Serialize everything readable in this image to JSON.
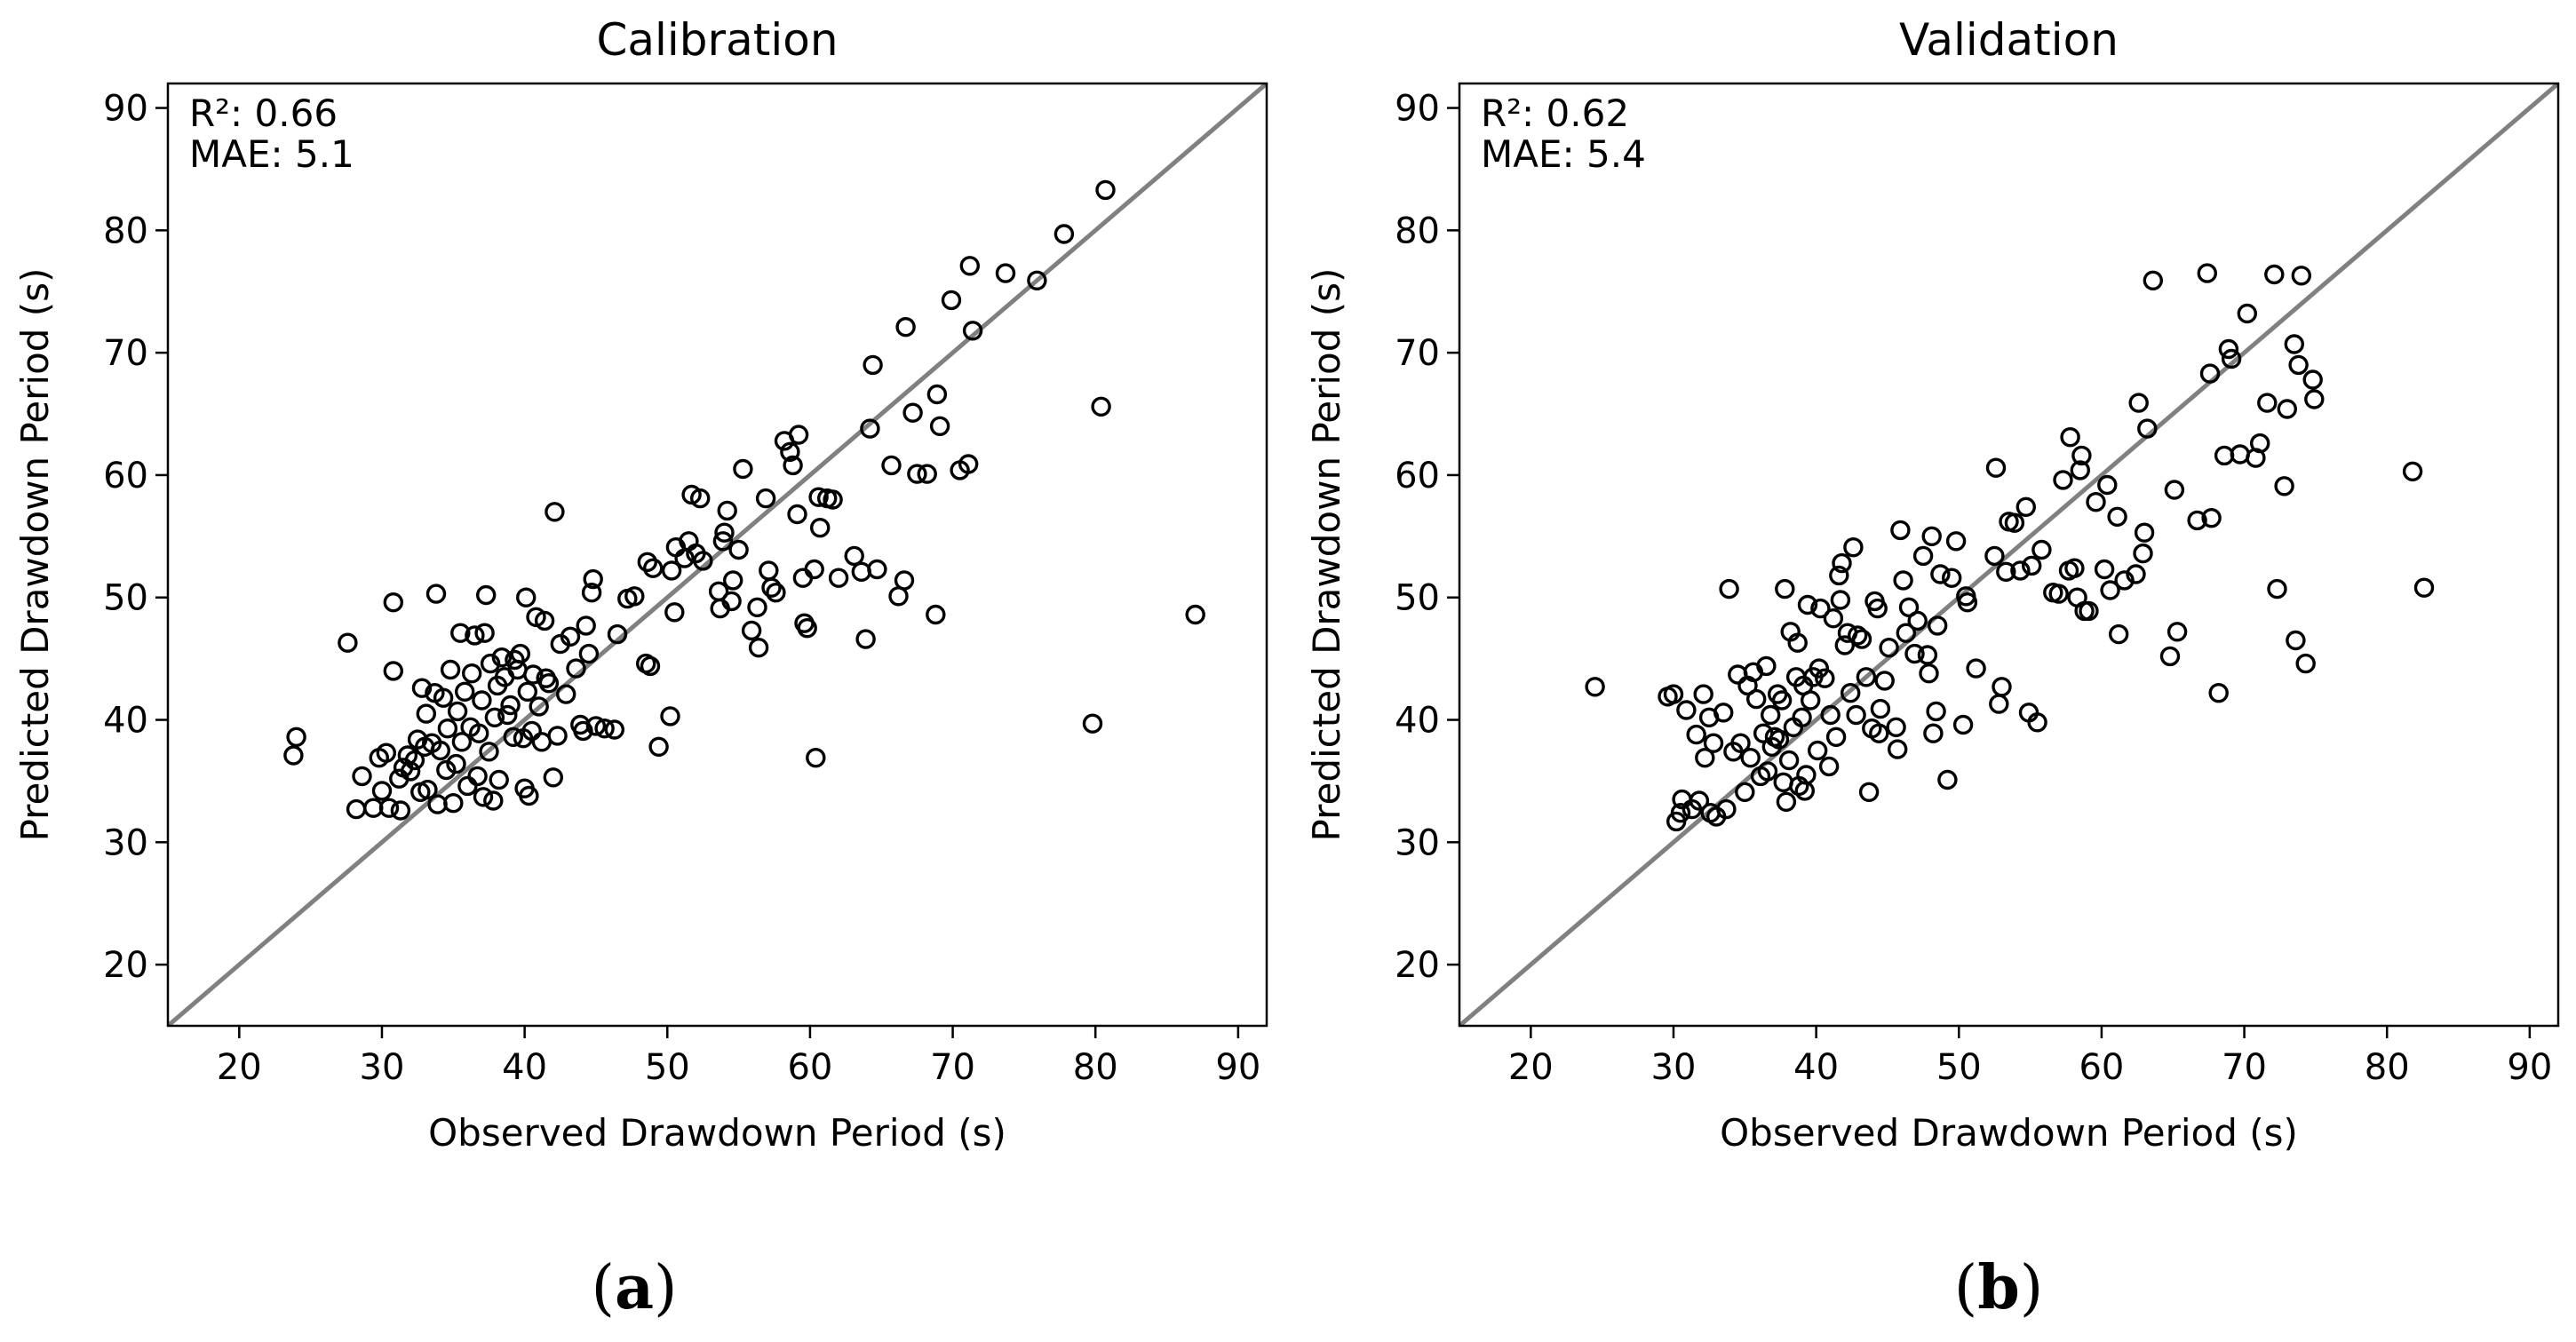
{
  "chart_data": [
    {
      "type": "scatter",
      "title": "Calibration",
      "xlabel": "Observed Drawdown Period (s)",
      "ylabel": "Predicted Drawdown Period (s)",
      "xlim": [
        15,
        92
      ],
      "ylim": [
        15,
        92
      ],
      "xticks": [
        20,
        30,
        40,
        50,
        60,
        70,
        80,
        90
      ],
      "yticks": [
        20,
        30,
        40,
        50,
        60,
        70,
        80,
        90
      ],
      "annotations": [
        "R²: 0.66",
        "MAE: 5.1"
      ],
      "marker": "open-circle",
      "reference_line": "1:1",
      "colors": {
        "points": "#000000",
        "line": "#808080"
      },
      "points": [
        [
          23.8,
          37.1
        ],
        [
          24.0,
          38.6
        ],
        [
          27.6,
          46.3
        ],
        [
          28.2,
          32.7
        ],
        [
          28.6,
          35.4
        ],
        [
          29.4,
          32.8
        ],
        [
          29.8,
          36.9
        ],
        [
          30.0,
          34.2
        ],
        [
          30.3,
          37.3
        ],
        [
          30.5,
          32.8
        ],
        [
          30.8,
          44.0
        ],
        [
          30.8,
          49.6
        ],
        [
          31.2,
          35.2
        ],
        [
          31.3,
          32.6
        ],
        [
          31.5,
          36.1
        ],
        [
          31.8,
          37.1
        ],
        [
          32.0,
          35.8
        ],
        [
          32.3,
          36.7
        ],
        [
          32.5,
          38.4
        ],
        [
          32.7,
          34.1
        ],
        [
          32.8,
          42.6
        ],
        [
          33.0,
          37.8
        ],
        [
          33.1,
          40.5
        ],
        [
          33.2,
          34.3
        ],
        [
          33.5,
          38.1
        ],
        [
          33.7,
          42.2
        ],
        [
          33.8,
          50.3
        ],
        [
          33.9,
          33.1
        ],
        [
          34.1,
          37.5
        ],
        [
          34.3,
          41.8
        ],
        [
          34.5,
          35.9
        ],
        [
          34.6,
          39.3
        ],
        [
          34.8,
          44.1
        ],
        [
          35.0,
          33.2
        ],
        [
          35.2,
          36.4
        ],
        [
          35.3,
          40.7
        ],
        [
          35.5,
          47.1
        ],
        [
          35.6,
          38.2
        ],
        [
          35.8,
          42.3
        ],
        [
          36.0,
          34.6
        ],
        [
          36.2,
          39.4
        ],
        [
          36.3,
          43.8
        ],
        [
          36.5,
          46.9
        ],
        [
          36.7,
          35.4
        ],
        [
          36.8,
          38.9
        ],
        [
          37.0,
          41.6
        ],
        [
          37.1,
          33.7
        ],
        [
          37.2,
          47.1
        ],
        [
          37.3,
          50.2
        ],
        [
          37.5,
          37.4
        ],
        [
          37.6,
          44.6
        ],
        [
          37.8,
          33.4
        ],
        [
          37.9,
          40.2
        ],
        [
          38.1,
          42.8
        ],
        [
          38.2,
          35.1
        ],
        [
          38.4,
          45.1
        ],
        [
          38.6,
          43.5
        ],
        [
          38.8,
          40.4
        ],
        [
          39.0,
          41.2
        ],
        [
          39.2,
          38.6
        ],
        [
          39.3,
          44.9
        ],
        [
          39.5,
          44.1
        ],
        [
          39.7,
          45.4
        ],
        [
          39.9,
          38.5
        ],
        [
          40.0,
          34.4
        ],
        [
          40.1,
          50.0
        ],
        [
          40.2,
          42.3
        ],
        [
          40.3,
          33.8
        ],
        [
          40.5,
          39.1
        ],
        [
          40.6,
          43.7
        ],
        [
          40.8,
          48.4
        ],
        [
          41.0,
          41.1
        ],
        [
          41.2,
          38.2
        ],
        [
          41.4,
          48.1
        ],
        [
          41.5,
          43.4
        ],
        [
          41.7,
          43.0
        ],
        [
          42.0,
          35.3
        ],
        [
          42.1,
          57.0
        ],
        [
          42.3,
          38.7
        ],
        [
          42.5,
          46.2
        ],
        [
          42.9,
          42.1
        ],
        [
          43.2,
          46.8
        ],
        [
          43.6,
          44.2
        ],
        [
          43.9,
          39.6
        ],
        [
          44.1,
          39.1
        ],
        [
          44.3,
          47.7
        ],
        [
          44.5,
          45.4
        ],
        [
          44.7,
          50.4
        ],
        [
          44.8,
          51.5
        ],
        [
          45.0,
          39.5
        ],
        [
          45.6,
          39.3
        ],
        [
          46.3,
          39.2
        ],
        [
          46.5,
          47.0
        ],
        [
          47.2,
          49.9
        ],
        [
          47.7,
          50.1
        ],
        [
          48.5,
          44.6
        ],
        [
          48.6,
          52.9
        ],
        [
          48.8,
          44.4
        ],
        [
          49.0,
          52.4
        ],
        [
          49.4,
          37.8
        ],
        [
          50.2,
          40.3
        ],
        [
          50.3,
          52.2
        ],
        [
          50.5,
          48.8
        ],
        [
          50.6,
          54.1
        ],
        [
          51.2,
          53.2
        ],
        [
          51.5,
          54.6
        ],
        [
          51.7,
          58.4
        ],
        [
          52.0,
          53.6
        ],
        [
          52.3,
          58.1
        ],
        [
          52.5,
          53.0
        ],
        [
          53.6,
          50.5
        ],
        [
          53.7,
          49.1
        ],
        [
          53.9,
          54.6
        ],
        [
          54.0,
          55.3
        ],
        [
          54.2,
          57.1
        ],
        [
          54.5,
          49.7
        ],
        [
          54.6,
          51.4
        ],
        [
          55.0,
          53.9
        ],
        [
          55.3,
          60.5
        ],
        [
          55.9,
          47.3
        ],
        [
          56.3,
          49.2
        ],
        [
          56.4,
          45.9
        ],
        [
          56.9,
          58.1
        ],
        [
          57.1,
          52.2
        ],
        [
          57.3,
          50.8
        ],
        [
          57.6,
          50.4
        ],
        [
          58.2,
          62.8
        ],
        [
          58.6,
          61.9
        ],
        [
          58.8,
          60.8
        ],
        [
          59.1,
          56.8
        ],
        [
          59.2,
          63.3
        ],
        [
          59.5,
          51.6
        ],
        [
          59.6,
          47.9
        ],
        [
          59.8,
          47.5
        ],
        [
          60.3,
          52.3
        ],
        [
          60.4,
          36.9
        ],
        [
          60.6,
          58.2
        ],
        [
          60.7,
          55.7
        ],
        [
          61.2,
          58.1
        ],
        [
          61.6,
          58.0
        ],
        [
          62.0,
          51.6
        ],
        [
          63.1,
          53.4
        ],
        [
          63.6,
          52.1
        ],
        [
          63.9,
          46.6
        ],
        [
          64.2,
          63.8
        ],
        [
          64.4,
          69.0
        ],
        [
          64.7,
          52.3
        ],
        [
          65.7,
          60.8
        ],
        [
          66.2,
          50.1
        ],
        [
          66.6,
          51.4
        ],
        [
          66.7,
          72.1
        ],
        [
          67.2,
          65.1
        ],
        [
          67.5,
          60.1
        ],
        [
          68.2,
          60.1
        ],
        [
          68.8,
          48.6
        ],
        [
          68.9,
          66.6
        ],
        [
          69.1,
          64.0
        ],
        [
          69.9,
          74.3
        ],
        [
          70.5,
          60.4
        ],
        [
          71.1,
          60.9
        ],
        [
          71.2,
          77.1
        ],
        [
          71.4,
          71.8
        ],
        [
          73.7,
          76.5
        ],
        [
          75.9,
          75.9
        ],
        [
          77.8,
          79.7
        ],
        [
          79.8,
          39.7
        ],
        [
          80.4,
          65.6
        ],
        [
          80.7,
          83.3
        ],
        [
          87.0,
          48.6
        ]
      ]
    },
    {
      "type": "scatter",
      "title": "Validation",
      "xlabel": "Observed Drawdown Period (s)",
      "ylabel": "Predicted Drawdown Period (s)",
      "xlim": [
        15,
        92
      ],
      "ylim": [
        15,
        92
      ],
      "xticks": [
        20,
        30,
        40,
        50,
        60,
        70,
        80,
        90
      ],
      "yticks": [
        20,
        30,
        40,
        50,
        60,
        70,
        80,
        90
      ],
      "annotations": [
        "R²: 0.62",
        "MAE: 5.4"
      ],
      "marker": "open-circle",
      "reference_line": "1:1",
      "colors": {
        "points": "#000000",
        "line": "#808080"
      },
      "points": [
        [
          24.5,
          42.7
        ],
        [
          29.6,
          41.9
        ],
        [
          30.0,
          42.1
        ],
        [
          30.2,
          31.7
        ],
        [
          30.5,
          32.4
        ],
        [
          30.6,
          33.5
        ],
        [
          30.9,
          40.8
        ],
        [
          31.3,
          32.7
        ],
        [
          31.6,
          38.8
        ],
        [
          31.8,
          33.4
        ],
        [
          32.1,
          42.1
        ],
        [
          32.2,
          36.9
        ],
        [
          32.5,
          40.2
        ],
        [
          32.6,
          32.4
        ],
        [
          32.8,
          38.1
        ],
        [
          33.0,
          32.1
        ],
        [
          33.5,
          40.6
        ],
        [
          33.7,
          32.7
        ],
        [
          33.9,
          50.7
        ],
        [
          34.2,
          37.4
        ],
        [
          34.5,
          43.7
        ],
        [
          34.7,
          38.1
        ],
        [
          35.0,
          34.1
        ],
        [
          35.2,
          42.8
        ],
        [
          35.4,
          36.9
        ],
        [
          35.6,
          43.9
        ],
        [
          35.8,
          41.7
        ],
        [
          36.1,
          35.4
        ],
        [
          36.3,
          38.9
        ],
        [
          36.5,
          44.4
        ],
        [
          36.6,
          35.8
        ],
        [
          36.8,
          40.4
        ],
        [
          36.9,
          37.8
        ],
        [
          37.1,
          38.6
        ],
        [
          37.3,
          42.1
        ],
        [
          37.4,
          38.4
        ],
        [
          37.6,
          41.6
        ],
        [
          37.7,
          34.9
        ],
        [
          37.8,
          50.7
        ],
        [
          37.9,
          33.3
        ],
        [
          38.1,
          36.7
        ],
        [
          38.2,
          47.2
        ],
        [
          38.4,
          39.4
        ],
        [
          38.6,
          43.5
        ],
        [
          38.7,
          46.3
        ],
        [
          38.8,
          34.6
        ],
        [
          39.0,
          40.2
        ],
        [
          39.1,
          42.8
        ],
        [
          39.2,
          34.2
        ],
        [
          39.3,
          35.5
        ],
        [
          39.4,
          49.4
        ],
        [
          39.6,
          41.6
        ],
        [
          39.8,
          43.5
        ],
        [
          40.1,
          37.5
        ],
        [
          40.2,
          44.2
        ],
        [
          40.3,
          49.1
        ],
        [
          40.6,
          43.4
        ],
        [
          40.9,
          36.2
        ],
        [
          41.0,
          40.4
        ],
        [
          41.2,
          48.3
        ],
        [
          41.4,
          38.6
        ],
        [
          41.6,
          51.8
        ],
        [
          41.7,
          49.8
        ],
        [
          41.8,
          52.8
        ],
        [
          42.0,
          46.1
        ],
        [
          42.2,
          47.1
        ],
        [
          42.4,
          42.2
        ],
        [
          42.6,
          54.1
        ],
        [
          42.8,
          40.4
        ],
        [
          42.9,
          46.9
        ],
        [
          43.2,
          46.6
        ],
        [
          43.5,
          43.5
        ],
        [
          43.7,
          34.1
        ],
        [
          43.9,
          39.3
        ],
        [
          44.1,
          49.7
        ],
        [
          44.3,
          49.1
        ],
        [
          44.4,
          38.9
        ],
        [
          44.5,
          40.9
        ],
        [
          44.8,
          43.2
        ],
        [
          45.1,
          45.9
        ],
        [
          45.6,
          39.4
        ],
        [
          45.7,
          37.6
        ],
        [
          45.9,
          55.5
        ],
        [
          46.1,
          51.4
        ],
        [
          46.3,
          47.1
        ],
        [
          46.5,
          49.2
        ],
        [
          46.9,
          45.4
        ],
        [
          47.1,
          48.1
        ],
        [
          47.5,
          53.4
        ],
        [
          47.8,
          45.3
        ],
        [
          47.9,
          43.8
        ],
        [
          48.1,
          55.0
        ],
        [
          48.2,
          38.9
        ],
        [
          48.4,
          40.7
        ],
        [
          48.5,
          47.7
        ],
        [
          48.7,
          51.9
        ],
        [
          49.2,
          35.1
        ],
        [
          49.5,
          51.6
        ],
        [
          49.8,
          54.6
        ],
        [
          50.3,
          39.6
        ],
        [
          50.5,
          50.1
        ],
        [
          50.6,
          49.6
        ],
        [
          51.2,
          44.2
        ],
        [
          52.5,
          53.4
        ],
        [
          52.6,
          60.6
        ],
        [
          52.8,
          41.3
        ],
        [
          53.0,
          42.7
        ],
        [
          53.3,
          52.1
        ],
        [
          53.5,
          56.2
        ],
        [
          53.9,
          56.1
        ],
        [
          54.3,
          52.2
        ],
        [
          54.7,
          57.4
        ],
        [
          54.9,
          40.6
        ],
        [
          55.1,
          52.6
        ],
        [
          55.5,
          39.8
        ],
        [
          55.8,
          53.9
        ],
        [
          56.6,
          50.4
        ],
        [
          57.0,
          50.3
        ],
        [
          57.3,
          59.6
        ],
        [
          57.7,
          52.2
        ],
        [
          57.8,
          63.1
        ],
        [
          58.1,
          52.4
        ],
        [
          58.3,
          50.0
        ],
        [
          58.5,
          60.4
        ],
        [
          58.6,
          61.6
        ],
        [
          58.8,
          48.9
        ],
        [
          59.1,
          48.9
        ],
        [
          59.6,
          57.8
        ],
        [
          60.2,
          52.3
        ],
        [
          60.4,
          59.2
        ],
        [
          60.6,
          50.6
        ],
        [
          61.1,
          56.6
        ],
        [
          61.2,
          47.0
        ],
        [
          61.6,
          51.4
        ],
        [
          62.4,
          51.9
        ],
        [
          62.6,
          65.9
        ],
        [
          62.9,
          53.6
        ],
        [
          63.0,
          55.3
        ],
        [
          63.2,
          63.8
        ],
        [
          63.6,
          75.9
        ],
        [
          64.8,
          45.2
        ],
        [
          65.1,
          58.8
        ],
        [
          65.3,
          47.2
        ],
        [
          66.7,
          56.3
        ],
        [
          67.4,
          76.5
        ],
        [
          67.6,
          68.3
        ],
        [
          67.7,
          56.5
        ],
        [
          68.2,
          42.2
        ],
        [
          68.6,
          61.6
        ],
        [
          68.9,
          70.3
        ],
        [
          69.1,
          69.5
        ],
        [
          69.7,
          61.7
        ],
        [
          70.2,
          73.2
        ],
        [
          70.8,
          61.4
        ],
        [
          71.1,
          62.6
        ],
        [
          71.6,
          65.9
        ],
        [
          72.1,
          76.4
        ],
        [
          72.3,
          50.7
        ],
        [
          72.8,
          59.1
        ],
        [
          73.0,
          65.4
        ],
        [
          73.5,
          70.7
        ],
        [
          73.6,
          46.5
        ],
        [
          73.8,
          69.0
        ],
        [
          74.0,
          76.3
        ],
        [
          74.3,
          44.6
        ],
        [
          74.8,
          67.8
        ],
        [
          74.9,
          66.2
        ],
        [
          81.8,
          60.3
        ],
        [
          82.6,
          50.8
        ]
      ]
    }
  ],
  "captions": {
    "a": "a",
    "b": "b"
  }
}
